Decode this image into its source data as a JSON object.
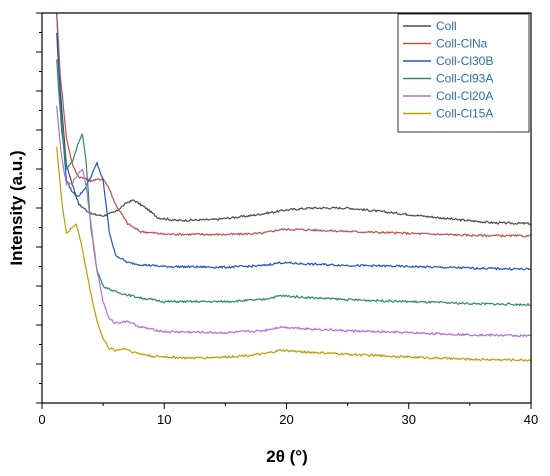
{
  "chart_data": {
    "type": "line",
    "title": "",
    "xlabel": "2θ (°)",
    "ylabel": "Intensity (a.u.)",
    "xlim": [
      0,
      40
    ],
    "xticks": [
      "0",
      "10",
      "20",
      "30",
      "40"
    ],
    "y_tick_labels_shown": false,
    "grid": false,
    "legend_position": "top-right",
    "series": [
      {
        "name": "Coll",
        "color": "#4d4d4d",
        "points": [
          [
            1.2,
            100
          ],
          [
            1.5,
            80
          ],
          [
            2,
            61
          ],
          [
            3,
            51
          ],
          [
            4,
            48.5
          ],
          [
            5,
            48
          ],
          [
            6,
            49
          ],
          [
            7,
            51.5
          ],
          [
            7.5,
            52
          ],
          [
            8.5,
            50
          ],
          [
            9.5,
            47.5
          ],
          [
            11,
            46.8
          ],
          [
            14,
            47
          ],
          [
            17,
            48
          ],
          [
            20,
            49.5
          ],
          [
            22,
            50
          ],
          [
            25,
            50
          ],
          [
            28,
            49
          ],
          [
            31,
            48
          ],
          [
            34,
            47
          ],
          [
            37,
            46.2
          ],
          [
            40,
            46
          ]
        ]
      },
      {
        "name": "Coll-ClNa",
        "color": "#c0504d",
        "points": [
          [
            1.2,
            100
          ],
          [
            1.5,
            84
          ],
          [
            2,
            68
          ],
          [
            2.5,
            61
          ],
          [
            3,
            58
          ],
          [
            4,
            57
          ],
          [
            5,
            57.5
          ],
          [
            5.5,
            55
          ],
          [
            6,
            51
          ],
          [
            7,
            46
          ],
          [
            8,
            44
          ],
          [
            10,
            43.3
          ],
          [
            15,
            43.2
          ],
          [
            18,
            43.5
          ],
          [
            19.5,
            44.5
          ],
          [
            21,
            44.5
          ],
          [
            25,
            44
          ],
          [
            30,
            43.5
          ],
          [
            35,
            43
          ],
          [
            40,
            42.8
          ]
        ]
      },
      {
        "name": "Coll-Cl30B",
        "color": "#2255c4",
        "points": [
          [
            1.2,
            95
          ],
          [
            1.6,
            72
          ],
          [
            2,
            57
          ],
          [
            2.5,
            54
          ],
          [
            3,
            53
          ],
          [
            3.5,
            55
          ],
          [
            4,
            58
          ],
          [
            4.5,
            61.5
          ],
          [
            5,
            57
          ],
          [
            5.5,
            44
          ],
          [
            6,
            38
          ],
          [
            7,
            36
          ],
          [
            8,
            35.5
          ],
          [
            10,
            35
          ],
          [
            15,
            34.8
          ],
          [
            18,
            35.2
          ],
          [
            19.5,
            36
          ],
          [
            22,
            35.6
          ],
          [
            25,
            35.3
          ],
          [
            30,
            35
          ],
          [
            35,
            34.6
          ],
          [
            40,
            34.3
          ]
        ]
      },
      {
        "name": "Coll-Cl93A",
        "color": "#2e8b6a",
        "points": [
          [
            1.2,
            88
          ],
          [
            1.6,
            70
          ],
          [
            2,
            60
          ],
          [
            2.5,
            62
          ],
          [
            3,
            67
          ],
          [
            3.3,
            69
          ],
          [
            3.6,
            62
          ],
          [
            4,
            45
          ],
          [
            4.5,
            34
          ],
          [
            5,
            30
          ],
          [
            6,
            28.5
          ],
          [
            8,
            27
          ],
          [
            10,
            26
          ],
          [
            15,
            26
          ],
          [
            18,
            26.5
          ],
          [
            19.5,
            27.5
          ],
          [
            22,
            27
          ],
          [
            25,
            26.5
          ],
          [
            30,
            26
          ],
          [
            35,
            25.5
          ],
          [
            40,
            25.2
          ]
        ]
      },
      {
        "name": "Coll-Cl20A",
        "color": "#b070d8",
        "points": [
          [
            1.2,
            76
          ],
          [
            1.6,
            63
          ],
          [
            2,
            56
          ],
          [
            2.5,
            56.5
          ],
          [
            3,
            59
          ],
          [
            3.3,
            60
          ],
          [
            3.6,
            56
          ],
          [
            4,
            46
          ],
          [
            4.5,
            34
          ],
          [
            5,
            26
          ],
          [
            5.5,
            21.5
          ],
          [
            6,
            20.5
          ],
          [
            7,
            21
          ],
          [
            8,
            19.5
          ],
          [
            10,
            18.3
          ],
          [
            15,
            18
          ],
          [
            18,
            18.5
          ],
          [
            19.5,
            19.5
          ],
          [
            22,
            19
          ],
          [
            25,
            18.5
          ],
          [
            30,
            18
          ],
          [
            35,
            17.5
          ],
          [
            40,
            17.2
          ]
        ]
      },
      {
        "name": "Coll-Cl15A",
        "color": "#b8a000",
        "points": [
          [
            1.2,
            66
          ],
          [
            1.6,
            52
          ],
          [
            2,
            43.5
          ],
          [
            2.5,
            45
          ],
          [
            2.8,
            46
          ],
          [
            3.2,
            41
          ],
          [
            4,
            28
          ],
          [
            4.5,
            21
          ],
          [
            5,
            16.5
          ],
          [
            5.5,
            14
          ],
          [
            6,
            13.5
          ],
          [
            6.8,
            14
          ],
          [
            7.5,
            13
          ],
          [
            9,
            12
          ],
          [
            12,
            11.5
          ],
          [
            15,
            11.8
          ],
          [
            18,
            12.5
          ],
          [
            19.5,
            13.5
          ],
          [
            22,
            13
          ],
          [
            25,
            12.5
          ],
          [
            30,
            11.8
          ],
          [
            35,
            11.2
          ],
          [
            40,
            11
          ]
        ]
      }
    ]
  }
}
